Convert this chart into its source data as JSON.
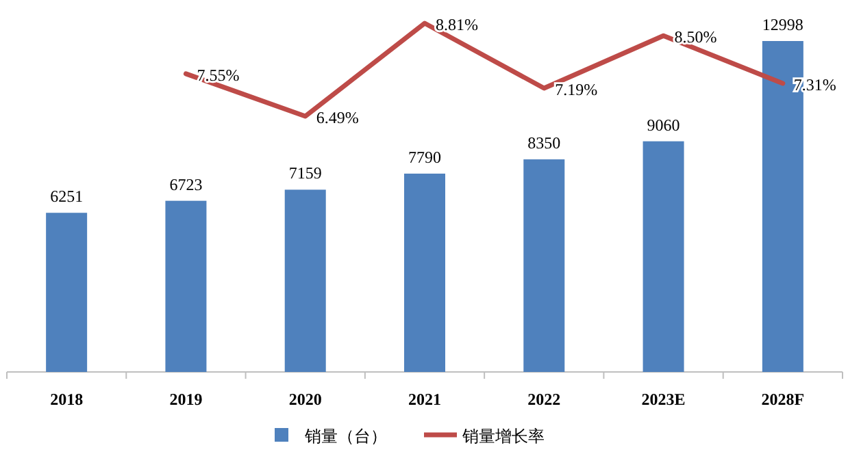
{
  "chart_data": {
    "type": "bar",
    "categories": [
      "2018",
      "2019",
      "2020",
      "2021",
      "2022",
      "2023E",
      "2028F"
    ],
    "series": [
      {
        "name": "销量（台）",
        "color": "#4f81bd",
        "values": [
          6251,
          6723,
          7159,
          7790,
          8350,
          9060,
          12998
        ]
      },
      {
        "name": "销量增长率",
        "type": "line",
        "axis": "y2",
        "color": "#be4b48",
        "values": [
          null,
          7.55,
          6.49,
          8.81,
          7.19,
          8.5,
          7.31
        ],
        "value_labels": [
          null,
          "7.55%",
          "6.49%",
          "8.81%",
          "7.19%",
          "8.50%",
          "7.31%"
        ]
      }
    ],
    "data_labels": true,
    "legend": "bottom"
  }
}
